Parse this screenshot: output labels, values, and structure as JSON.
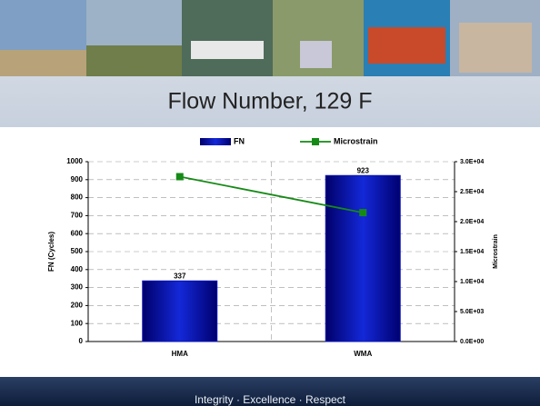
{
  "slide": {
    "title": "Flow Number, 129 F",
    "footer": "Integrity · Excellence · Respect"
  },
  "chart_data": {
    "type": "bar",
    "categories": [
      "HMA",
      "WMA"
    ],
    "ylabel": "FN (Cycles)",
    "y2label": "Microstrain",
    "ylim": [
      0,
      1000
    ],
    "yticks": [
      0,
      100,
      200,
      300,
      400,
      500,
      600,
      700,
      800,
      900,
      1000
    ],
    "y2lim": [
      0,
      30000
    ],
    "y2ticks": [
      {
        "value": 0,
        "label": "0.0E+00"
      },
      {
        "value": 5000,
        "label": "5.0E+03"
      },
      {
        "value": 10000,
        "label": "1.0E+04"
      },
      {
        "value": 15000,
        "label": "1.5E+04"
      },
      {
        "value": 20000,
        "label": "2.0E+04"
      },
      {
        "value": 25000,
        "label": "2.5E+04"
      },
      {
        "value": 30000,
        "label": "3.0E+04"
      }
    ],
    "grid": true,
    "legend": "top",
    "series": [
      {
        "name": "FN",
        "type": "bar",
        "color": "#0a14b4",
        "values": [
          337,
          923
        ]
      },
      {
        "name": "Microstrain",
        "type": "line",
        "axis": "y2",
        "color": "#168a16",
        "values": [
          27500,
          21500
        ]
      }
    ]
  }
}
